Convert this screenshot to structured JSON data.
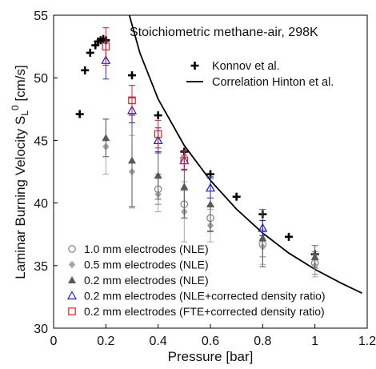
{
  "chart_data": {
    "type": "scatter",
    "title": "",
    "annotation": "Stoichiometric methane-air, 298K",
    "xlabel": "Pressure [bar]",
    "ylabel_main": "Laminar Burning Velocity S",
    "ylabel_sub": "L",
    "ylabel_sup": "0",
    "ylabel_unit": " [cm/s]",
    "xlim": [
      0,
      1.2
    ],
    "ylim": [
      30,
      55
    ],
    "xticks": [
      0,
      0.2,
      0.4,
      0.6,
      0.8,
      1,
      1.2
    ],
    "xtick_labels": [
      "0",
      "0.2",
      "0.4",
      "0.6",
      "0.8",
      "1",
      "1.2"
    ],
    "yticks": [
      30,
      35,
      40,
      45,
      50,
      55
    ],
    "ytick_labels": [
      "30",
      "35",
      "40",
      "45",
      "50",
      "55"
    ],
    "legend_top": [
      {
        "label": "Konnov et al.",
        "marker": "plus"
      },
      {
        "label": "Correlation Hinton et al.",
        "marker": "line"
      }
    ],
    "legend_bottom": [
      {
        "label": "1.0 mm electrodes (NLE)",
        "marker": "circle-open"
      },
      {
        "label": "0.5 mm electrodes (NLE)",
        "marker": "diamond"
      },
      {
        "label": "0.2 mm electrodes (NLE)",
        "marker": "triangle"
      },
      {
        "label": "0.2 mm electrodes (NLE+corrected density ratio)",
        "marker": "triangle-open"
      },
      {
        "label": "0.2 mm electrodes (FTE+corrected density ratio)",
        "marker": "square-open"
      }
    ],
    "series": [
      {
        "name": "Konnov et al.",
        "marker": "plus",
        "color": "#000000",
        "points": [
          {
            "x": 0.1,
            "y": 47.1
          },
          {
            "x": 0.12,
            "y": 50.6
          },
          {
            "x": 0.14,
            "y": 52.0
          },
          {
            "x": 0.16,
            "y": 52.6
          },
          {
            "x": 0.17,
            "y": 52.9
          },
          {
            "x": 0.18,
            "y": 53.0
          },
          {
            "x": 0.19,
            "y": 53.1
          },
          {
            "x": 0.2,
            "y": 53.0
          },
          {
            "x": 0.3,
            "y": 50.2
          },
          {
            "x": 0.4,
            "y": 47.0
          },
          {
            "x": 0.5,
            "y": 44.1
          },
          {
            "x": 0.6,
            "y": 42.3
          },
          {
            "x": 0.7,
            "y": 40.5
          },
          {
            "x": 0.8,
            "y": 39.1
          },
          {
            "x": 0.9,
            "y": 37.3
          },
          {
            "x": 1.0,
            "y": 35.9
          }
        ]
      },
      {
        "name": "Correlation Hinton et al.",
        "marker": "line",
        "color": "#000000",
        "points": [
          {
            "x": 0.29,
            "y": 55.0
          },
          {
            "x": 0.33,
            "y": 52.0
          },
          {
            "x": 0.4,
            "y": 48.3
          },
          {
            "x": 0.5,
            "y": 44.6
          },
          {
            "x": 0.6,
            "y": 41.8
          },
          {
            "x": 0.7,
            "y": 39.5
          },
          {
            "x": 0.8,
            "y": 37.6
          },
          {
            "x": 0.9,
            "y": 36.0
          },
          {
            "x": 1.0,
            "y": 34.7
          },
          {
            "x": 1.1,
            "y": 33.6
          },
          {
            "x": 1.18,
            "y": 32.8
          }
        ]
      },
      {
        "name": "1.0 mm electrodes (NLE)",
        "marker": "circle-open",
        "color": "#7f7f7f",
        "points": [
          {
            "x": 0.4,
            "y": 41.1,
            "err": 1.2
          },
          {
            "x": 0.5,
            "y": 39.9,
            "err": 1.1
          },
          {
            "x": 0.6,
            "y": 38.8,
            "err": 1.0
          },
          {
            "x": 0.8,
            "y": 36.7,
            "err": 1.0
          },
          {
            "x": 1.0,
            "y": 35.2,
            "err": 0.9
          }
        ]
      },
      {
        "name": "0.5 mm electrodes (NLE)",
        "marker": "diamond",
        "color": "#a6a6a6",
        "points": [
          {
            "x": 0.2,
            "y": 44.5,
            "err": 2.2
          },
          {
            "x": 0.3,
            "y": 42.5,
            "err": 2.9
          },
          {
            "x": 0.4,
            "y": 40.7,
            "err": 1.4
          },
          {
            "x": 0.5,
            "y": 39.3,
            "err": 2.4
          },
          {
            "x": 0.6,
            "y": 38.2,
            "err": 1.3
          },
          {
            "x": 0.8,
            "y": 36.5,
            "err": 1.4
          },
          {
            "x": 1.0,
            "y": 35.0,
            "err": 0.9
          }
        ]
      },
      {
        "name": "0.2 mm electrodes (NLE)",
        "marker": "triangle",
        "color": "#595959",
        "points": [
          {
            "x": 0.2,
            "y": 45.2,
            "err": 1.5
          },
          {
            "x": 0.3,
            "y": 43.4,
            "err": 3.7
          },
          {
            "x": 0.4,
            "y": 42.2,
            "err": 1.9
          },
          {
            "x": 0.5,
            "y": 41.3,
            "err": 2.5
          },
          {
            "x": 0.6,
            "y": 39.9,
            "err": 2.2
          },
          {
            "x": 0.8,
            "y": 37.2,
            "err": 2.3
          },
          {
            "x": 1.0,
            "y": 35.7,
            "err": 0.9
          }
        ]
      },
      {
        "name": "0.2 mm electrodes (NLE+corrected density ratio)",
        "marker": "triangle-open",
        "color": "#2020d0",
        "points": [
          {
            "x": 0.2,
            "y": 51.4,
            "err": 1.5
          },
          {
            "x": 0.3,
            "y": 47.4,
            "err": 1.0
          },
          {
            "x": 0.4,
            "y": 45.0,
            "err": 1.0
          },
          {
            "x": 0.5,
            "y": 43.4,
            "err": 0.7
          },
          {
            "x": 0.6,
            "y": 41.2,
            "err": 0.8
          },
          {
            "x": 0.8,
            "y": 38.0,
            "err": 0.6
          }
        ]
      },
      {
        "name": "0.2 mm electrodes (FTE+corrected density ratio)",
        "marker": "square-open",
        "color": "#e02020",
        "points": [
          {
            "x": 0.2,
            "y": 52.5,
            "err": 1.5
          },
          {
            "x": 0.3,
            "y": 48.2,
            "err": 1.2
          },
          {
            "x": 0.4,
            "y": 45.5,
            "err": 1.1
          },
          {
            "x": 0.5,
            "y": 43.4,
            "err": 0.8
          }
        ]
      }
    ]
  }
}
